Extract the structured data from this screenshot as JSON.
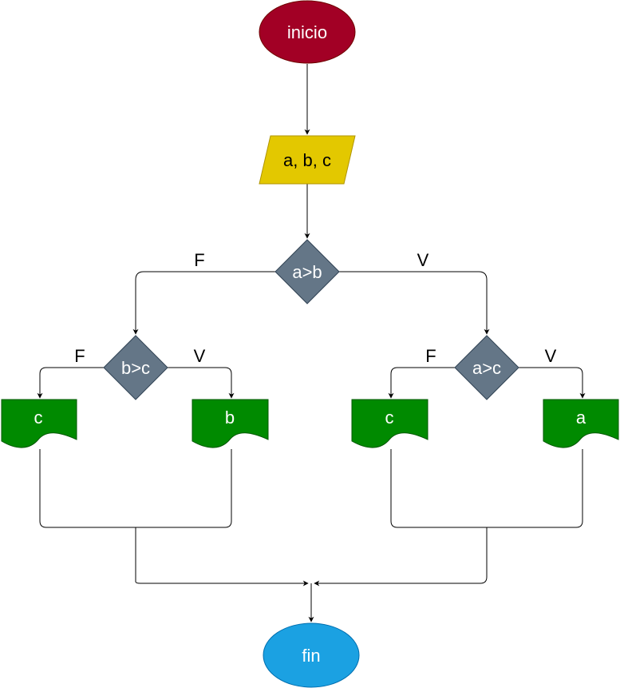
{
  "colors": {
    "start": "#a20025",
    "start_stroke": "#6f0000",
    "input": "#e3c800",
    "input_stroke": "#b09500",
    "decision": "#647687",
    "decision_stroke": "#314354",
    "output": "#008a00",
    "output_stroke": "#005700",
    "end": "#1ba1e2",
    "end_stroke": "#006eaf"
  },
  "nodes": {
    "start": "inicio",
    "input": "a, b, c",
    "decision_main": "a>b",
    "decision_left": "b>c",
    "decision_right": "a>c",
    "output_left_false": "c",
    "output_left_true": "b",
    "output_right_false": "c",
    "output_right_true": "a",
    "end": "fin"
  },
  "edge_labels": {
    "main_false": "F",
    "main_true": "V",
    "left_false": "F",
    "left_true": "V",
    "right_false": "F",
    "right_true": "V"
  }
}
